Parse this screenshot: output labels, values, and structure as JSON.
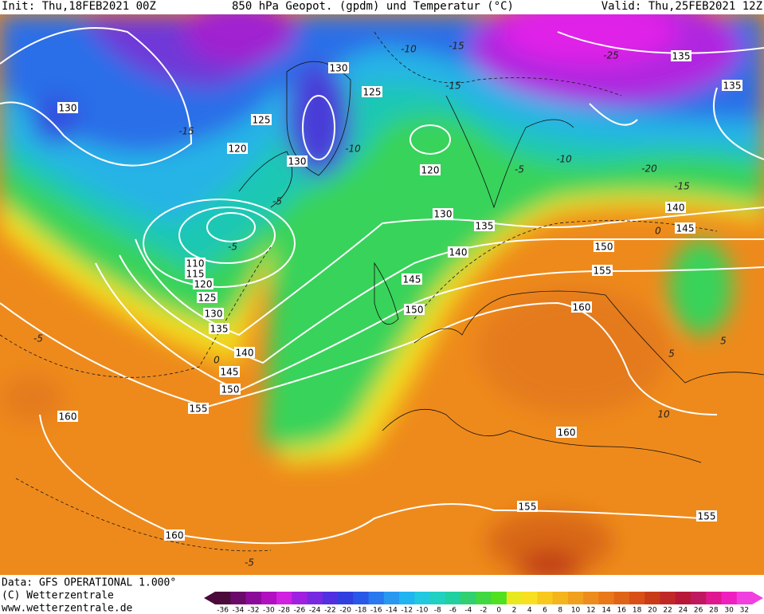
{
  "header": {
    "init": "Init: Thu,18FEB2021 00Z",
    "title": "850 hPa Geopot. (gpdm) und Temperatur (°C)",
    "valid": "Valid: Thu,25FEB2021 12Z"
  },
  "footer": {
    "data": "Data: GFS OPERATIONAL 1.000°",
    "copyright": "(C) Wetterzentrale",
    "url": "www.wetterzentrale.de"
  },
  "colorbar": {
    "labels": [
      -36,
      -34,
      -32,
      -30,
      -28,
      -26,
      -24,
      -22,
      -20,
      -18,
      -16,
      -14,
      -12,
      -10,
      -8,
      -6,
      -4,
      -2,
      0,
      2,
      4,
      6,
      8,
      10,
      12,
      14,
      16,
      18,
      20,
      22,
      24,
      26,
      28,
      30,
      32
    ]
  },
  "geopotential_labels": [
    "130",
    "130",
    "125",
    "125",
    "120",
    "130",
    "120",
    "130",
    "135",
    "140",
    "145",
    "150",
    "110",
    "115",
    "120",
    "125",
    "130",
    "135",
    "140",
    "145",
    "150",
    "155",
    "160",
    "160",
    "150",
    "155",
    "160",
    "160",
    "155",
    "155",
    "140",
    "145",
    "135",
    "135"
  ],
  "temperature_labels": [
    "-10",
    "-15",
    "-25",
    "-15",
    "-15",
    "-10",
    "-10",
    "-20",
    "-15",
    "-5",
    "-5",
    "0",
    "0",
    "-5",
    "5",
    "-5",
    "5",
    "10",
    "-5"
  ]
}
